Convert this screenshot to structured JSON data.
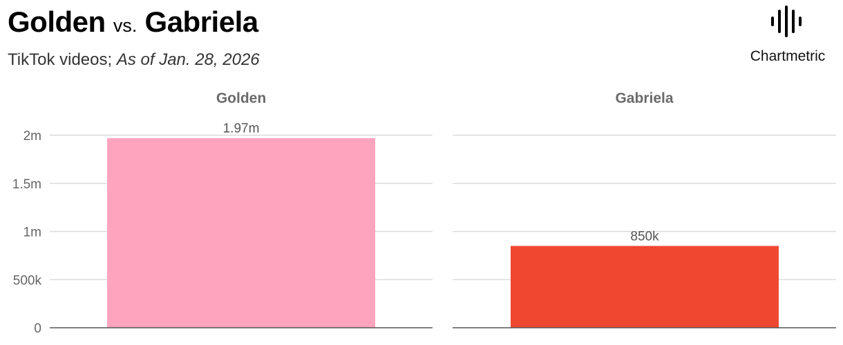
{
  "title": {
    "left": "Golden",
    "vs": "vs.",
    "right": "Gabriela"
  },
  "subtitle": {
    "text": "TikTok videos;",
    "date": "As of Jan. 28, 2026"
  },
  "logo": {
    "text": "Chartmetric",
    "icon": "chartmetric-waveform-icon"
  },
  "chart_data": {
    "type": "bar",
    "categories": [
      "Golden",
      "Gabriela"
    ],
    "values": [
      1970000,
      850000
    ],
    "data_labels": [
      "1.97m",
      "850k"
    ],
    "colors": [
      "#ffa4bf",
      "#ef4830"
    ],
    "ylim": [
      0,
      2000000
    ],
    "yticks": [
      0,
      500000,
      1000000,
      1500000,
      2000000
    ],
    "ytick_labels": [
      "0",
      "500k",
      "1m",
      "1.5m",
      "2m"
    ],
    "grid": true,
    "facets": true
  }
}
